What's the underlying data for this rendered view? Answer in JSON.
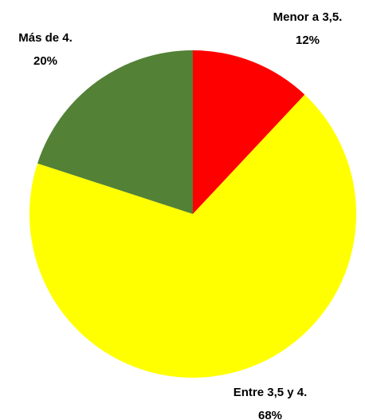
{
  "chart_data": {
    "type": "pie",
    "categories": [
      "Menor a 3,5.",
      "Entre 3,5 y 4.",
      "Más de 4."
    ],
    "values": [
      12,
      68,
      20
    ],
    "value_labels": [
      "12%",
      "68%",
      "20%"
    ],
    "colors": [
      "#ff0000",
      "#ffff00",
      "#538135"
    ]
  }
}
